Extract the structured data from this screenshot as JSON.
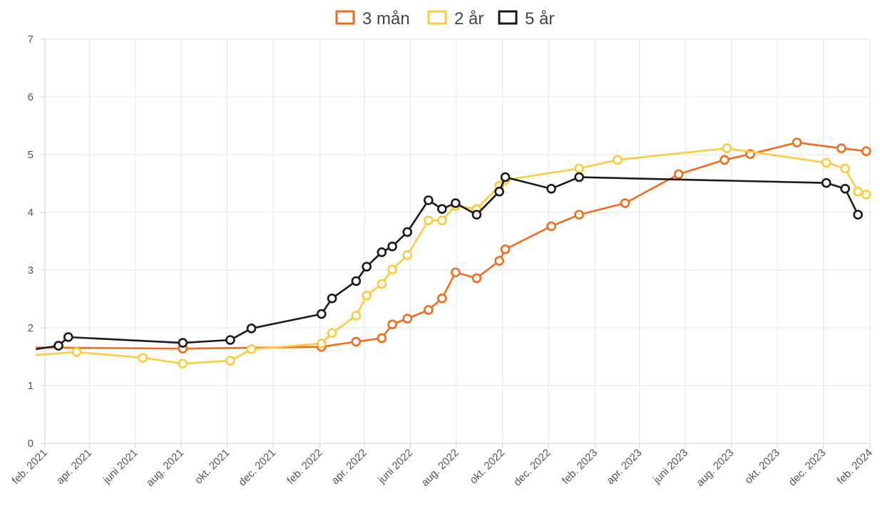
{
  "chart_data": {
    "type": "line",
    "ylim": [
      0,
      7
    ],
    "yticks": [
      "0",
      "1",
      "2",
      "3",
      "4",
      "5",
      "6",
      "7"
    ],
    "xlim": [
      "2021-02-01",
      "2024-02-01"
    ],
    "xticks": [
      {
        "date": "2021-02-01",
        "label": "feb. 2021"
      },
      {
        "date": "2021-04-01",
        "label": "apr. 2021"
      },
      {
        "date": "2021-06-01",
        "label": "juni 2021"
      },
      {
        "date": "2021-08-01",
        "label": "aug. 2021"
      },
      {
        "date": "2021-10-01",
        "label": "okt. 2021"
      },
      {
        "date": "2021-12-01",
        "label": "dec. 2021"
      },
      {
        "date": "2022-02-01",
        "label": "feb. 2022"
      },
      {
        "date": "2022-04-01",
        "label": "apr. 2022"
      },
      {
        "date": "2022-06-01",
        "label": "juni 2022"
      },
      {
        "date": "2022-08-01",
        "label": "aug. 2022"
      },
      {
        "date": "2022-10-01",
        "label": "okt. 2022"
      },
      {
        "date": "2022-12-01",
        "label": "dec. 2022"
      },
      {
        "date": "2023-02-01",
        "label": "feb. 2023"
      },
      {
        "date": "2023-04-01",
        "label": "apr. 2023"
      },
      {
        "date": "2023-06-01",
        "label": "juni 2023"
      },
      {
        "date": "2023-08-01",
        "label": "aug. 2023"
      },
      {
        "date": "2023-10-01",
        "label": "okt. 2023"
      },
      {
        "date": "2023-12-01",
        "label": "dec. 2023"
      },
      {
        "date": "2024-02-01",
        "label": "feb. 2024"
      }
    ],
    "grid": true,
    "legend": "top-center",
    "series": [
      {
        "name": "3 mån",
        "color": "#f26b1d",
        "points": [
          {
            "x": "2021-01-20",
            "y": 1.66
          },
          {
            "x": "2021-08-03",
            "y": 1.64
          },
          {
            "x": "2022-02-03",
            "y": 1.67
          },
          {
            "x": "2022-03-21",
            "y": 1.76
          },
          {
            "x": "2022-04-24",
            "y": 1.82
          },
          {
            "x": "2022-05-08",
            "y": 2.06
          },
          {
            "x": "2022-05-28",
            "y": 2.16
          },
          {
            "x": "2022-06-25",
            "y": 2.31
          },
          {
            "x": "2022-07-13",
            "y": 2.51
          },
          {
            "x": "2022-07-31",
            "y": 2.96
          },
          {
            "x": "2022-08-28",
            "y": 2.86
          },
          {
            "x": "2022-09-27",
            "y": 3.16
          },
          {
            "x": "2022-10-05",
            "y": 3.36
          },
          {
            "x": "2022-12-05",
            "y": 3.76
          },
          {
            "x": "2023-01-11",
            "y": 3.96
          },
          {
            "x": "2023-03-13",
            "y": 4.16
          },
          {
            "x": "2023-05-23",
            "y": 4.66
          },
          {
            "x": "2023-07-23",
            "y": 4.91
          },
          {
            "x": "2023-08-26",
            "y": 5.01
          },
          {
            "x": "2023-10-27",
            "y": 5.21
          },
          {
            "x": "2023-12-25",
            "y": 5.11
          },
          {
            "x": "2024-01-27",
            "y": 5.06
          }
        ]
      },
      {
        "name": "2 år",
        "color": "#fcca3e",
        "points": [
          {
            "x": "2021-01-20",
            "y": 1.53
          },
          {
            "x": "2021-03-15",
            "y": 1.58
          },
          {
            "x": "2021-06-11",
            "y": 1.48
          },
          {
            "x": "2021-08-03",
            "y": 1.38
          },
          {
            "x": "2021-10-05",
            "y": 1.43
          },
          {
            "x": "2021-11-02",
            "y": 1.63
          },
          {
            "x": "2022-02-03",
            "y": 1.73
          },
          {
            "x": "2022-02-17",
            "y": 1.91
          },
          {
            "x": "2022-03-21",
            "y": 2.21
          },
          {
            "x": "2022-04-04",
            "y": 2.56
          },
          {
            "x": "2022-04-24",
            "y": 2.76
          },
          {
            "x": "2022-05-08",
            "y": 3.01
          },
          {
            "x": "2022-05-28",
            "y": 3.26
          },
          {
            "x": "2022-06-25",
            "y": 3.86
          },
          {
            "x": "2022-07-13",
            "y": 3.86
          },
          {
            "x": "2022-07-31",
            "y": 4.11
          },
          {
            "x": "2022-08-28",
            "y": 4.06
          },
          {
            "x": "2022-09-27",
            "y": 4.46
          },
          {
            "x": "2022-10-05",
            "y": 4.56
          },
          {
            "x": "2023-01-11",
            "y": 4.76
          },
          {
            "x": "2023-03-03",
            "y": 4.91
          },
          {
            "x": "2023-07-26",
            "y": 5.11
          },
          {
            "x": "2023-12-05",
            "y": 4.86
          },
          {
            "x": "2023-12-30",
            "y": 4.76
          },
          {
            "x": "2024-01-16",
            "y": 4.36
          },
          {
            "x": "2024-01-27",
            "y": 4.31
          }
        ]
      },
      {
        "name": "5 år",
        "color": "#1a1a1a",
        "points": [
          {
            "x": "2021-01-20",
            "y": 1.63
          },
          {
            "x": "2021-02-19",
            "y": 1.69
          },
          {
            "x": "2021-03-04",
            "y": 1.84
          },
          {
            "x": "2021-08-03",
            "y": 1.74
          },
          {
            "x": "2021-10-05",
            "y": 1.79
          },
          {
            "x": "2021-11-02",
            "y": 1.99
          },
          {
            "x": "2022-02-03",
            "y": 2.24
          },
          {
            "x": "2022-02-17",
            "y": 2.51
          },
          {
            "x": "2022-03-21",
            "y": 2.81
          },
          {
            "x": "2022-04-04",
            "y": 3.06
          },
          {
            "x": "2022-04-24",
            "y": 3.31
          },
          {
            "x": "2022-05-08",
            "y": 3.41
          },
          {
            "x": "2022-05-28",
            "y": 3.66
          },
          {
            "x": "2022-06-25",
            "y": 4.21
          },
          {
            "x": "2022-07-13",
            "y": 4.06
          },
          {
            "x": "2022-07-31",
            "y": 4.16
          },
          {
            "x": "2022-08-28",
            "y": 3.96
          },
          {
            "x": "2022-09-27",
            "y": 4.36
          },
          {
            "x": "2022-10-05",
            "y": 4.61
          },
          {
            "x": "2022-12-05",
            "y": 4.41
          },
          {
            "x": "2023-01-11",
            "y": 4.61
          },
          {
            "x": "2023-12-05",
            "y": 4.51
          },
          {
            "x": "2023-12-30",
            "y": 4.41
          },
          {
            "x": "2024-01-16",
            "y": 3.96
          }
        ]
      }
    ]
  }
}
